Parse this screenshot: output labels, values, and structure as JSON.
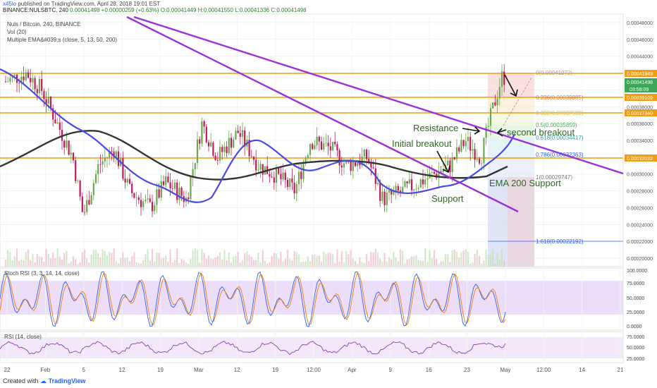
{
  "header": {
    "user": "x45lo",
    "published": "published on TradingView.com, April 28, 2018 19:01 EST",
    "symbol_line": "BINANCE:NULSBTC, 240",
    "price": "0.00041498",
    "change": "+0.00000259 (+0.63%)",
    "open": "O:0.00041449",
    "high": "H:0.00041550",
    "low": "L:0.00041336",
    "close": "C:0.00041498"
  },
  "legend": {
    "title": "Nuls / Bitcoin, 240, BINANCE",
    "vol": "Vol (20)",
    "ema": "Multiple EMA&#039;s (close, 5, 13, 50, 200)"
  },
  "colors": {
    "up": "#6aa84f",
    "down": "#c2185b",
    "ema_fast": "#d6327a",
    "ema_mid": "#2ca02c",
    "ema_blue": "#4a4adf",
    "ema200": "#333333",
    "trendline": "#9b30d9",
    "hline": "#f39c12"
  },
  "price_axis": {
    "ticks": [
      "0.00048000",
      "0.00046000",
      "0.00044000",
      "0.00042000",
      "0.00040000",
      "0.00038000",
      "0.00036000",
      "0.00034000",
      "0.00032000",
      "0.00030000",
      "0.00028000",
      "0.00026000",
      "0.00024000",
      "0.00022000",
      "0.00020000"
    ],
    "labels": [
      {
        "text": "0.00041949",
        "color": "#f39c12"
      },
      {
        "text": "0.00041498",
        "color": "#3aa757"
      },
      {
        "text": "03:58:09",
        "color": "#3aa757"
      },
      {
        "text": "0.00039109",
        "color": "#f39c12"
      },
      {
        "text": "0.00037340",
        "color": "#f39c12"
      },
      {
        "text": "0.00032032",
        "color": "#f39c12"
      }
    ]
  },
  "fib": [
    {
      "text": "0(0.00041972)",
      "color": "#a0a0a0"
    },
    {
      "text": "0.236(0.00039885)",
      "color": "#e07b39"
    },
    {
      "text": "0.382(0.00037590)",
      "color": "#d0c050"
    },
    {
      "text": "0.5(0.00035859)",
      "color": "#4caf50"
    },
    {
      "text": "0.618(0.00034417)",
      "color": "#3aa0a0"
    },
    {
      "text": "0.786(0.00032363)",
      "color": "#2962ff"
    },
    {
      "text": "1(0.00029747)",
      "color": "#777777"
    },
    {
      "text": "1.618(0.00022192)",
      "color": "#2962ff"
    }
  ],
  "annotations": {
    "resistance": "Resistance",
    "second": "second breakout",
    "initial": "Initial breakout",
    "ema200": "EMA 200 Support",
    "support": "Support"
  },
  "stoch": {
    "title": "Stoch RSI (3, 3, 14, 14, close)",
    "ticks": [
      "100.0000",
      "75.0000",
      "50.0000",
      "25.0000",
      "0.0000"
    ]
  },
  "rsi": {
    "title": "RSI (14, close)",
    "ticks": [
      "75.0000",
      "50.0000",
      "25.0000"
    ]
  },
  "time_axis": [
    "22",
    "Feb",
    "5",
    "12",
    "19",
    "Mar",
    "12",
    "19",
    "12:00",
    "Apr",
    "9",
    "16",
    "23",
    "May",
    "12:00",
    "14",
    "21"
  ],
  "footer": {
    "prefix": "Created with",
    "brand": "TradingView"
  },
  "chart_data": {
    "type": "line",
    "title": "Nuls / Bitcoin, 240, BINANCE",
    "x_range": [
      "2018-01-22",
      "2018-05-21"
    ],
    "ylim": [
      0.00019,
      0.00049
    ],
    "key_levels": [
      0.00041949,
      0.00039109,
      0.0003734,
      0.00032032
    ],
    "price_path": {
      "x": [
        "2018-01-22",
        "2018-01-26",
        "2018-01-29",
        "2018-02-01",
        "2018-02-04",
        "2018-02-06",
        "2018-02-09",
        "2018-02-12",
        "2018-02-15",
        "2018-02-19",
        "2018-02-22",
        "2018-02-26",
        "2018-03-01",
        "2018-03-04",
        "2018-03-08",
        "2018-03-12",
        "2018-03-15",
        "2018-03-19",
        "2018-03-22",
        "2018-03-26",
        "2018-03-29",
        "2018-04-02",
        "2018-04-05",
        "2018-04-09",
        "2018-04-12",
        "2018-04-15",
        "2018-04-18",
        "2018-04-21",
        "2018-04-24",
        "2018-04-26",
        "2018-04-28"
      ],
      "y": [
        0.00041,
        0.00042,
        0.0004,
        0.00036,
        0.00032,
        0.00025,
        0.00031,
        0.00033,
        0.00028,
        0.00026,
        0.00029,
        0.00027,
        0.00036,
        0.00032,
        0.00035,
        0.00031,
        0.0003,
        0.00028,
        0.00034,
        0.00033,
        0.00031,
        0.00032,
        0.00027,
        0.00028,
        0.00029,
        0.0003,
        0.00031,
        0.00034,
        0.00032,
        0.00037,
        0.00041498
      ]
    }
  }
}
